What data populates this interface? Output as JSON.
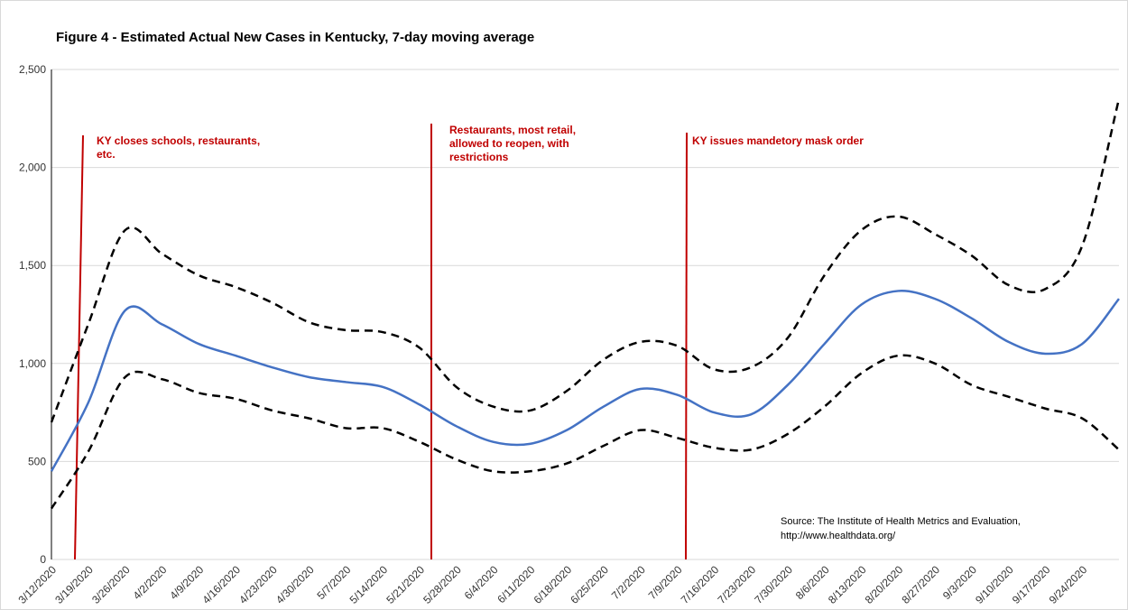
{
  "chart_data": {
    "type": "line",
    "title": "Figure 4 - Estimated Actual New Cases in Kentucky, 7-day moving average",
    "categories": [
      "3/12/2020",
      "3/19/2020",
      "3/26/2020",
      "4/2/2020",
      "4/9/2020",
      "4/16/2020",
      "4/23/2020",
      "4/30/2020",
      "5/7/2020",
      "5/14/2020",
      "5/21/2020",
      "5/28/2020",
      "6/4/2020",
      "6/11/2020",
      "6/18/2020",
      "6/25/2020",
      "7/2/2020",
      "7/9/2020",
      "7/16/2020",
      "7/23/2020",
      "7/30/2020",
      "8/6/2020",
      "8/13/2020",
      "8/20/2020",
      "8/27/2020",
      "9/3/2020",
      "9/10/2020",
      "9/17/2020",
      "9/24/2020",
      null
    ],
    "series": [
      {
        "color": "#4472c4",
        "dash": false,
        "values": [
          450,
          800,
          1270,
          1200,
          1100,
          1040,
          980,
          930,
          905,
          880,
          790,
          680,
          600,
          590,
          660,
          780,
          870,
          840,
          750,
          740,
          890,
          1100,
          1300,
          1370,
          1330,
          1230,
          1110,
          1050,
          1100,
          1330
        ]
      },
      {
        "color": "#000000",
        "dash": true,
        "values": [
          700,
          1200,
          1680,
          1560,
          1450,
          1390,
          1310,
          1210,
          1170,
          1160,
          1080,
          880,
          780,
          760,
          860,
          1020,
          1110,
          1090,
          970,
          980,
          1130,
          1450,
          1680,
          1750,
          1660,
          1550,
          1400,
          1380,
          1600,
          2350
        ]
      },
      {
        "color": "#000000",
        "dash": true,
        "values": [
          260,
          550,
          930,
          920,
          850,
          820,
          760,
          720,
          670,
          670,
          600,
          510,
          450,
          450,
          490,
          580,
          660,
          620,
          570,
          560,
          640,
          780,
          950,
          1040,
          1000,
          890,
          830,
          770,
          720,
          560
        ]
      }
    ],
    "ylim": [
      0,
      2500
    ],
    "yticks": [
      0,
      500,
      {
        "value": 1000,
        "label": "1,000"
      },
      {
        "value": 1500,
        "label": "1,500"
      },
      {
        "value": 2000,
        "label": "2,000"
      },
      {
        "value": 2500,
        "label": "2,500"
      }
    ],
    "grid": true,
    "annotations": [
      {
        "lines": [
          "KY closes schools, restaurants,",
          "etc."
        ],
        "color": "#c00000"
      },
      {
        "lines": [
          "Restaurants, most retail,",
          "allowed to reopen, with",
          "restrictions"
        ],
        "color": "#c00000"
      },
      {
        "lines": [
          "KY issues mandetory mask order"
        ],
        "color": "#c00000"
      }
    ],
    "source": [
      "Source: The Institute of Health Metrics and Evaluation,",
      "http://www.healthdata.org/"
    ]
  }
}
